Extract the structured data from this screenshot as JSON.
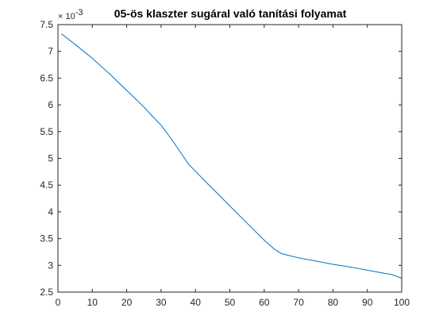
{
  "chart_data": {
    "type": "line",
    "title": "05-ös klaszter sugáral való tanítási folyamat",
    "xlabel": "",
    "ylabel": "",
    "xlim": [
      0,
      100
    ],
    "ylim": [
      2.5,
      7.5
    ],
    "y_exponent_label": "× 10",
    "y_exponent_power": "-3",
    "x_ticks": [
      0,
      10,
      20,
      30,
      40,
      50,
      60,
      70,
      80,
      90,
      100
    ],
    "x_tick_labels": [
      "0",
      "10",
      "20",
      "30",
      "40",
      "50",
      "60",
      "70",
      "80",
      "90",
      "100"
    ],
    "y_ticks": [
      2.5,
      3,
      3.5,
      4,
      4.5,
      5,
      5.5,
      6,
      6.5,
      7,
      7.5
    ],
    "y_tick_labels": [
      "2.5",
      "3",
      "3.5",
      "4",
      "4.5",
      "5",
      "5.5",
      "6",
      "6.5",
      "7",
      "7.5"
    ],
    "grid": false,
    "legend": "none",
    "series": [
      {
        "color": "#0072BD",
        "x": [
          1,
          5,
          10,
          15,
          20,
          25,
          27,
          30,
          33,
          36,
          38,
          40,
          43,
          46,
          50,
          55,
          60,
          63,
          65,
          70,
          75,
          80,
          85,
          90,
          95,
          97,
          100
        ],
        "y": [
          7.33,
          7.13,
          6.87,
          6.58,
          6.27,
          5.96,
          5.82,
          5.62,
          5.36,
          5.08,
          4.89,
          4.76,
          4.56,
          4.37,
          4.11,
          3.79,
          3.47,
          3.3,
          3.22,
          3.14,
          3.08,
          3.02,
          2.97,
          2.91,
          2.85,
          2.83,
          2.76
        ]
      }
    ]
  }
}
